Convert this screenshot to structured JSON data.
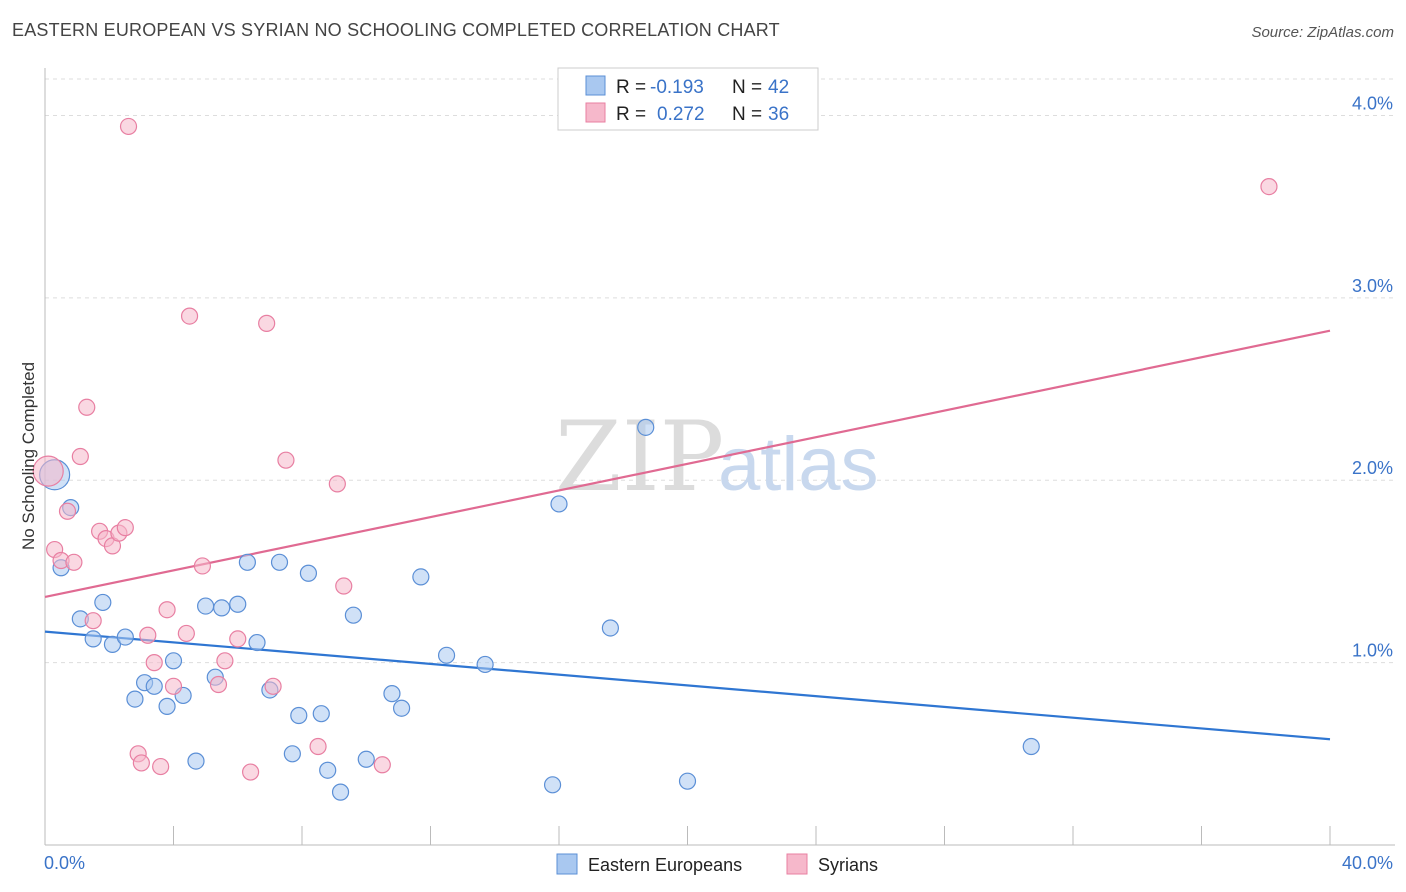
{
  "title": "EASTERN EUROPEAN VS SYRIAN NO SCHOOLING COMPLETED CORRELATION CHART",
  "source": "Source: ZipAtlas.com",
  "watermark": {
    "zip": "ZIP",
    "atlas": "atlas"
  },
  "colors": {
    "blue_fill": "#a9c8f0",
    "blue_stroke": "#5b8fd6",
    "blue_line": "#2f76d2",
    "pink_fill": "#f6b8cb",
    "pink_stroke": "#e87fa2",
    "pink_line": "#e06a92",
    "grid": "#dddddd",
    "accent": "#3a73c8"
  },
  "legend_stats": [
    {
      "r_label": "R =",
      "r_value": "-0.193",
      "n_label": "N =",
      "n_value": "42",
      "series": "Eastern Europeans"
    },
    {
      "r_label": "R =",
      "r_value": "0.272",
      "n_label": "N =",
      "n_value": "36",
      "series": "Syrians"
    }
  ],
  "chart_data": {
    "type": "scatter",
    "title": "EASTERN EUROPEAN VS SYRIAN NO SCHOOLING COMPLETED CORRELATION CHART",
    "xlabel": "",
    "ylabel": "No Schooling Completed",
    "xlim": [
      0,
      40
    ],
    "ylim": [
      0,
      4.2
    ],
    "x_tick_labels": [
      "0.0%",
      "40.0%"
    ],
    "y_ticks": [
      1.0,
      2.0,
      3.0,
      4.0
    ],
    "y_tick_labels": [
      "1.0%",
      "2.0%",
      "3.0%",
      "4.0%"
    ],
    "grid": true,
    "legend_position": "bottom",
    "series": [
      {
        "name": "Eastern Europeans",
        "color": "#a9c8f0",
        "trend": {
          "x": [
            0,
            40
          ],
          "y": [
            1.17,
            0.58
          ]
        },
        "points": [
          {
            "x": 0.3,
            "y": 2.03,
            "big": true
          },
          {
            "x": 0.5,
            "y": 1.52
          },
          {
            "x": 0.8,
            "y": 1.85
          },
          {
            "x": 1.1,
            "y": 1.24
          },
          {
            "x": 1.5,
            "y": 1.13
          },
          {
            "x": 1.8,
            "y": 1.33
          },
          {
            "x": 2.1,
            "y": 1.1
          },
          {
            "x": 2.5,
            "y": 1.14
          },
          {
            "x": 2.8,
            "y": 0.8
          },
          {
            "x": 3.1,
            "y": 0.89
          },
          {
            "x": 3.4,
            "y": 0.87
          },
          {
            "x": 3.8,
            "y": 0.76
          },
          {
            "x": 4.0,
            "y": 1.01
          },
          {
            "x": 4.3,
            "y": 0.82
          },
          {
            "x": 4.7,
            "y": 0.46
          },
          {
            "x": 5.0,
            "y": 1.31
          },
          {
            "x": 5.3,
            "y": 0.92
          },
          {
            "x": 5.5,
            "y": 1.3
          },
          {
            "x": 6.0,
            "y": 1.32
          },
          {
            "x": 6.3,
            "y": 1.55
          },
          {
            "x": 6.6,
            "y": 1.11
          },
          {
            "x": 7.0,
            "y": 0.85
          },
          {
            "x": 7.3,
            "y": 1.55
          },
          {
            "x": 7.7,
            "y": 0.5
          },
          {
            "x": 7.9,
            "y": 0.71
          },
          {
            "x": 8.2,
            "y": 1.49
          },
          {
            "x": 8.6,
            "y": 0.72
          },
          {
            "x": 8.8,
            "y": 0.41
          },
          {
            "x": 9.2,
            "y": 0.29
          },
          {
            "x": 9.6,
            "y": 1.26
          },
          {
            "x": 10.0,
            "y": 0.47
          },
          {
            "x": 10.8,
            "y": 0.83
          },
          {
            "x": 11.1,
            "y": 0.75
          },
          {
            "x": 11.7,
            "y": 1.47
          },
          {
            "x": 12.5,
            "y": 1.04
          },
          {
            "x": 13.7,
            "y": 0.99
          },
          {
            "x": 15.8,
            "y": 0.33
          },
          {
            "x": 16.0,
            "y": 1.87
          },
          {
            "x": 17.6,
            "y": 1.19
          },
          {
            "x": 18.7,
            "y": 2.29
          },
          {
            "x": 20.0,
            "y": 0.35
          },
          {
            "x": 30.7,
            "y": 0.54
          }
        ]
      },
      {
        "name": "Syrians",
        "color": "#f6b8cb",
        "trend": {
          "x": [
            0,
            40
          ],
          "y": [
            1.36,
            2.82
          ]
        },
        "points": [
          {
            "x": 0.1,
            "y": 2.05,
            "big": true
          },
          {
            "x": 0.3,
            "y": 1.62
          },
          {
            "x": 0.5,
            "y": 1.56
          },
          {
            "x": 0.7,
            "y": 1.83
          },
          {
            "x": 0.9,
            "y": 1.55
          },
          {
            "x": 1.1,
            "y": 2.13
          },
          {
            "x": 1.3,
            "y": 2.4
          },
          {
            "x": 1.5,
            "y": 1.23
          },
          {
            "x": 1.7,
            "y": 1.72
          },
          {
            "x": 1.9,
            "y": 1.68
          },
          {
            "x": 2.1,
            "y": 1.64
          },
          {
            "x": 2.3,
            "y": 1.71
          },
          {
            "x": 2.5,
            "y": 1.74
          },
          {
            "x": 2.6,
            "y": 3.94
          },
          {
            "x": 2.9,
            "y": 0.5
          },
          {
            "x": 3.0,
            "y": 0.45
          },
          {
            "x": 3.2,
            "y": 1.15
          },
          {
            "x": 3.4,
            "y": 1.0
          },
          {
            "x": 3.6,
            "y": 0.43
          },
          {
            "x": 3.8,
            "y": 1.29
          },
          {
            "x": 4.0,
            "y": 0.87
          },
          {
            "x": 4.4,
            "y": 1.16
          },
          {
            "x": 4.5,
            "y": 2.9
          },
          {
            "x": 4.9,
            "y": 1.53
          },
          {
            "x": 5.4,
            "y": 0.88
          },
          {
            "x": 5.6,
            "y": 1.01
          },
          {
            "x": 6.0,
            "y": 1.13
          },
          {
            "x": 6.4,
            "y": 0.4
          },
          {
            "x": 6.9,
            "y": 2.86
          },
          {
            "x": 7.1,
            "y": 0.87
          },
          {
            "x": 7.5,
            "y": 2.11
          },
          {
            "x": 8.5,
            "y": 0.54
          },
          {
            "x": 9.1,
            "y": 1.98
          },
          {
            "x": 9.3,
            "y": 1.42
          },
          {
            "x": 10.5,
            "y": 0.44
          },
          {
            "x": 38.1,
            "y": 3.61
          }
        ]
      }
    ]
  }
}
